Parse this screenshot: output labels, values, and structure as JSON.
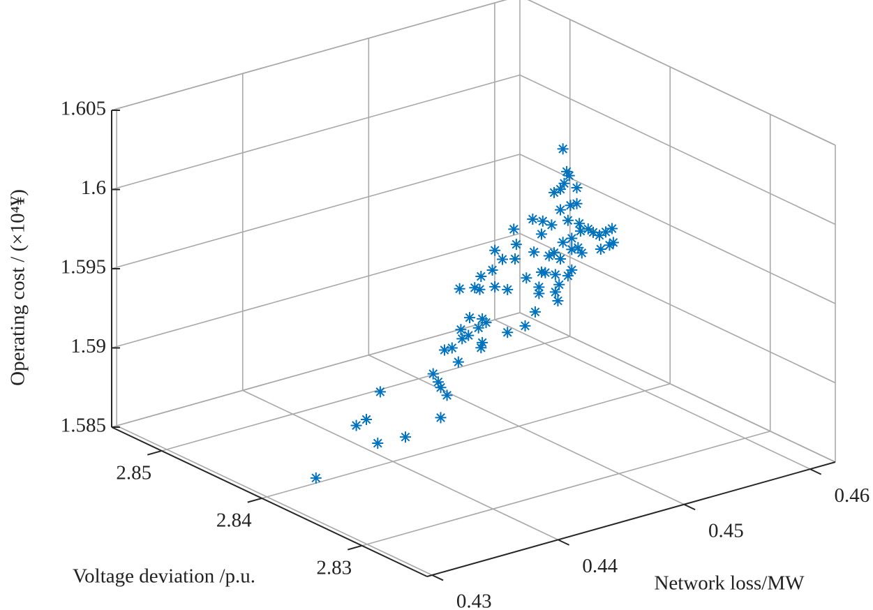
{
  "chart_data": {
    "type": "scatter3d",
    "xlabel": "Network loss/MW",
    "ylabel": "Voltage deviation /p.u.",
    "zlabel": "Operating cost / (×10⁴¥)",
    "color": "#0072bd",
    "marker": "asterisk",
    "grid": true,
    "xlim": [
      0.4296,
      0.462
    ],
    "ylim": [
      2.8235,
      2.855
    ],
    "zlim": [
      1.585,
      1.605
    ],
    "xticks": [
      0.43,
      0.44,
      0.45,
      0.46
    ],
    "yticks": [
      2.83,
      2.84,
      2.85
    ],
    "zticks": [
      1.585,
      1.59,
      1.595,
      1.6,
      1.605
    ],
    "x": [
      0.4331,
      0.4363,
      0.4371,
      0.4382,
      0.438,
      0.4402,
      0.4424,
      0.4428,
      0.443,
      0.4435,
      0.443,
      0.4444,
      0.4433,
      0.4439,
      0.4447,
      0.4446,
      0.4452,
      0.4453,
      0.4463,
      0.446,
      0.4466,
      0.4463,
      0.4462,
      0.4483,
      0.4497,
      0.4505,
      0.4445,
      0.4457,
      0.4461,
      0.4462,
      0.4473,
      0.4483,
      0.4471,
      0.4473,
      0.4479,
      0.4489,
      0.449,
      0.4488,
      0.4498,
      0.4504,
      0.4508,
      0.4508,
      0.451,
      0.4513,
      0.4521,
      0.4524,
      0.4521,
      0.4523,
      0.4531,
      0.4534,
      0.4503,
      0.4511,
      0.4518,
      0.451,
      0.4516,
      0.452,
      0.4525,
      0.4527,
      0.4531,
      0.4534,
      0.454,
      0.4541,
      0.4534,
      0.4539,
      0.4542,
      0.4547,
      0.4551,
      0.4556,
      0.4557,
      0.4561,
      0.4566,
      0.4564,
      0.4567,
      0.452,
      0.4525,
      0.4528,
      0.453,
      0.4532,
      0.4538,
      0.4525,
      0.4533,
      0.4538,
      0.4527
    ],
    "y": [
      2.839,
      2.839,
      2.839,
      2.839,
      2.839,
      2.839,
      2.839,
      2.839,
      2.839,
      2.839,
      2.839,
      2.839,
      2.839,
      2.839,
      2.839,
      2.839,
      2.839,
      2.839,
      2.839,
      2.839,
      2.839,
      2.839,
      2.839,
      2.839,
      2.839,
      2.839,
      2.839,
      2.839,
      2.839,
      2.839,
      2.839,
      2.839,
      2.839,
      2.839,
      2.839,
      2.839,
      2.839,
      2.839,
      2.839,
      2.839,
      2.839,
      2.839,
      2.839,
      2.839,
      2.839,
      2.839,
      2.839,
      2.839,
      2.839,
      2.839,
      2.839,
      2.839,
      2.839,
      2.839,
      2.839,
      2.839,
      2.839,
      2.839,
      2.839,
      2.839,
      2.839,
      2.839,
      2.839,
      2.839,
      2.839,
      2.839,
      2.839,
      2.839,
      2.839,
      2.839,
      2.839,
      2.839,
      2.839,
      2.839,
      2.839,
      2.839,
      2.839,
      2.839,
      2.839,
      2.839,
      2.839,
      2.839,
      2.839
    ],
    "z": [
      1.5858,
      1.5884,
      1.5886,
      1.5901,
      1.5869,
      1.5868,
      1.5903,
      1.5897,
      1.5893,
      1.5887,
      1.5874,
      1.5906,
      1.5916,
      1.5916,
      1.592,
      1.5926,
      1.5921,
      1.5932,
      1.5929,
      1.5924,
      1.5926,
      1.5914,
      1.5911,
      1.5916,
      1.5917,
      1.5924,
      1.5952,
      1.595,
      1.5948,
      1.5956,
      1.5947,
      1.5943,
      1.5958,
      1.597,
      1.5963,
      1.5961,
      1.597,
      1.598,
      1.5947,
      1.5962,
      1.5939,
      1.5935,
      1.5948,
      1.5947,
      1.5944,
      1.5937,
      1.5933,
      1.5927,
      1.5941,
      1.5944,
      1.5983,
      1.598,
      1.5976,
      1.5972,
      1.5957,
      1.5958,
      1.5953,
      1.5963,
      1.5976,
      1.5964,
      1.5972,
      1.5967,
      1.5957,
      1.5957,
      1.5953,
      1.5967,
      1.5964,
      1.5961,
      1.5952,
      1.5962,
      1.5963,
      1.5953,
      1.5954,
      1.5996,
      1.5997,
      1.6,
      1.6007,
      1.6004,
      1.5995,
      1.5984,
      1.5985,
      1.5985,
      1.6022
    ]
  }
}
